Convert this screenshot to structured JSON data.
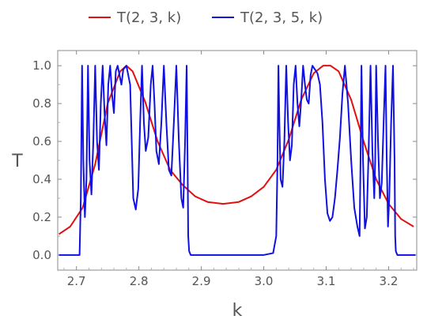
{
  "chart_data": {
    "type": "line",
    "title": "",
    "xlabel": "k",
    "ylabel": "T",
    "xlim": [
      2.67,
      3.245
    ],
    "ylim": [
      -0.08,
      1.08
    ],
    "x_ticks": [
      "2.7",
      "2.8",
      "2.9",
      "3.0",
      "3.1",
      "3.2"
    ],
    "y_ticks": [
      "0.0",
      "0.2",
      "0.4",
      "0.6",
      "0.8",
      "1.0"
    ],
    "grid": false,
    "legend_position": "top",
    "series": [
      {
        "name": "T(2, 3, k)",
        "color": "#e01010",
        "x": [
          2.672,
          2.69,
          2.71,
          2.73,
          2.75,
          2.77,
          2.78,
          2.79,
          2.81,
          2.83,
          2.85,
          2.87,
          2.89,
          2.91,
          2.935,
          2.96,
          2.98,
          3.0,
          3.02,
          3.04,
          3.06,
          3.08,
          3.095,
          3.107,
          3.12,
          3.14,
          3.16,
          3.18,
          3.2,
          3.22,
          3.24
        ],
        "y": [
          0.11,
          0.15,
          0.25,
          0.48,
          0.8,
          0.97,
          1.0,
          0.97,
          0.81,
          0.6,
          0.45,
          0.37,
          0.31,
          0.28,
          0.27,
          0.28,
          0.31,
          0.36,
          0.45,
          0.61,
          0.82,
          0.96,
          1.0,
          1.0,
          0.97,
          0.82,
          0.6,
          0.4,
          0.27,
          0.19,
          0.15
        ]
      },
      {
        "name": "T(2, 3, 5, k)",
        "color": "#1010e0",
        "x": [
          2.672,
          2.705,
          2.707,
          2.709,
          2.711,
          2.7135,
          2.716,
          2.7185,
          2.721,
          2.724,
          2.727,
          2.73,
          2.733,
          2.736,
          2.739,
          2.742,
          2.745,
          2.748,
          2.751,
          2.754,
          2.757,
          2.76,
          2.763,
          2.766,
          2.769,
          2.772,
          2.775,
          2.78,
          2.786,
          2.791,
          2.795,
          2.799,
          2.802,
          2.805,
          2.808,
          2.811,
          2.815,
          2.819,
          2.822,
          2.825,
          2.828,
          2.832,
          2.836,
          2.84,
          2.844,
          2.848,
          2.852,
          2.856,
          2.86,
          2.864,
          2.868,
          2.871,
          2.874,
          2.8765,
          2.878,
          2.879,
          2.8805,
          2.883,
          2.89,
          2.9,
          2.95,
          3.0,
          3.015,
          3.02,
          3.022,
          3.0235,
          3.025,
          3.027,
          3.03,
          3.033,
          3.036,
          3.039,
          3.042,
          3.045,
          3.048,
          3.051,
          3.054,
          3.057,
          3.06,
          3.063,
          3.066,
          3.069,
          3.072,
          3.075,
          3.078,
          3.082,
          3.086,
          3.09,
          3.094,
          3.098,
          3.102,
          3.106,
          3.11,
          3.114,
          3.118,
          3.122,
          3.126,
          3.13,
          3.135,
          3.14,
          3.145,
          3.15,
          3.1535,
          3.155,
          3.1565,
          3.159,
          3.162,
          3.165,
          3.168,
          3.171,
          3.174,
          3.177,
          3.1785,
          3.18,
          3.183,
          3.186,
          3.189,
          3.192,
          3.195,
          3.197,
          3.199,
          3.201,
          3.204,
          3.207,
          3.2095,
          3.2105,
          3.2115,
          3.214,
          3.22,
          3.243
        ],
        "y": [
          0.0,
          0.0,
          0.3,
          1.0,
          0.5,
          0.2,
          0.4,
          1.0,
          0.5,
          0.32,
          0.6,
          1.0,
          0.6,
          0.45,
          0.8,
          1.0,
          0.75,
          0.58,
          0.9,
          1.0,
          0.85,
          0.75,
          0.97,
          1.0,
          0.95,
          0.9,
          0.98,
          1.0,
          0.9,
          0.3,
          0.24,
          0.35,
          0.7,
          1.0,
          0.7,
          0.55,
          0.62,
          0.9,
          1.0,
          0.8,
          0.55,
          0.48,
          0.7,
          1.0,
          0.7,
          0.45,
          0.42,
          0.7,
          1.0,
          0.6,
          0.3,
          0.25,
          0.6,
          1.0,
          0.5,
          0.1,
          0.02,
          0.0,
          0.0,
          0.0,
          0.0,
          0.0,
          0.01,
          0.1,
          0.5,
          1.0,
          0.7,
          0.4,
          0.36,
          0.6,
          1.0,
          0.7,
          0.5,
          0.58,
          0.9,
          1.0,
          0.8,
          0.68,
          0.82,
          1.0,
          0.9,
          0.82,
          0.8,
          0.95,
          1.0,
          0.98,
          0.96,
          0.9,
          0.7,
          0.4,
          0.22,
          0.18,
          0.2,
          0.3,
          0.45,
          0.62,
          0.85,
          1.0,
          0.8,
          0.5,
          0.25,
          0.15,
          0.1,
          0.5,
          1.0,
          0.5,
          0.14,
          0.2,
          0.55,
          1.0,
          0.55,
          0.3,
          0.5,
          1.0,
          0.6,
          0.3,
          0.38,
          0.7,
          1.0,
          0.5,
          0.15,
          0.3,
          0.7,
          1.0,
          0.5,
          0.1,
          0.02,
          0.0,
          0.0,
          0.0
        ]
      }
    ]
  }
}
